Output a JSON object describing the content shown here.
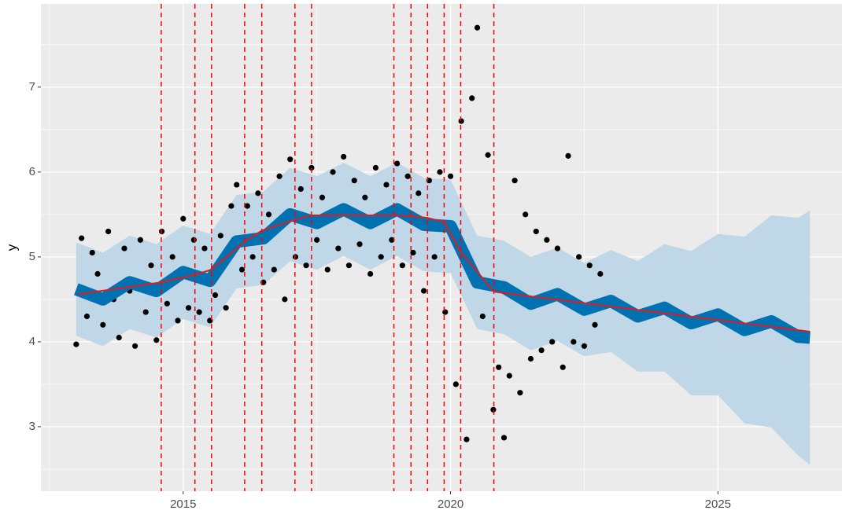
{
  "chart_data": {
    "type": "forecast",
    "ylabel": "y",
    "xlim": [
      2012.34,
      2027.32
    ],
    "ylim": [
      2.24,
      7.98
    ],
    "xticks": [
      2015,
      2020,
      2025
    ],
    "yticks": [
      3,
      4,
      5,
      6,
      7
    ],
    "minor_xticks": [
      2012.5,
      2017.5,
      2022.5
    ],
    "minor_yticks": [
      2.5,
      3.5,
      4.5,
      5.5,
      6.5,
      7.5
    ],
    "grid": true,
    "background": "#EBEBEB",
    "points": {
      "color": "#000000",
      "x": [
        2013.0,
        2013.1,
        2013.2,
        2013.3,
        2013.4,
        2013.5,
        2013.6,
        2013.7,
        2013.8,
        2013.9,
        2014.0,
        2014.1,
        2014.2,
        2014.3,
        2014.4,
        2014.5,
        2014.6,
        2014.7,
        2014.8,
        2014.9,
        2015.0,
        2015.1,
        2015.2,
        2015.3,
        2015.4,
        2015.5,
        2015.6,
        2015.7,
        2015.8,
        2015.9,
        2016.0,
        2016.1,
        2016.2,
        2016.3,
        2016.4,
        2016.5,
        2016.6,
        2016.7,
        2016.8,
        2016.9,
        2017.0,
        2017.1,
        2017.2,
        2017.3,
        2017.4,
        2017.5,
        2017.6,
        2017.7,
        2017.8,
        2017.9,
        2018.0,
        2018.1,
        2018.2,
        2018.3,
        2018.4,
        2018.5,
        2018.6,
        2018.7,
        2018.8,
        2018.9,
        2019.0,
        2019.1,
        2019.2,
        2019.3,
        2019.4,
        2019.5,
        2019.6,
        2019.7,
        2019.8,
        2019.9,
        2020.0,
        2020.1,
        2020.2,
        2020.3,
        2020.4,
        2020.5,
        2020.6,
        2020.7,
        2020.8,
        2020.9,
        2021.0,
        2021.1,
        2021.2,
        2021.3,
        2021.4,
        2021.5,
        2021.6,
        2021.7,
        2021.8,
        2021.9,
        2022.0,
        2022.1,
        2022.2,
        2022.3,
        2022.4,
        2022.5,
        2022.6,
        2022.7,
        2022.8
      ],
      "values": [
        3.97,
        5.22,
        4.3,
        5.05,
        4.8,
        4.2,
        5.3,
        4.5,
        4.05,
        5.1,
        4.6,
        3.95,
        5.2,
        4.35,
        4.9,
        4.02,
        5.3,
        4.45,
        5.0,
        4.25,
        5.45,
        4.4,
        5.2,
        4.35,
        5.1,
        4.25,
        4.55,
        5.25,
        4.4,
        5.6,
        5.85,
        4.85,
        5.6,
        5.0,
        5.75,
        4.7,
        5.5,
        4.85,
        5.95,
        4.5,
        6.15,
        5.0,
        5.8,
        4.9,
        6.05,
        5.2,
        5.7,
        4.85,
        6.0,
        5.1,
        6.18,
        4.9,
        5.9,
        5.15,
        5.7,
        4.8,
        6.05,
        5.0,
        5.85,
        5.2,
        6.1,
        4.9,
        5.95,
        5.05,
        5.75,
        4.6,
        5.9,
        5.0,
        6.0,
        4.35,
        5.95,
        3.5,
        6.6,
        2.85,
        6.87,
        7.7,
        4.3,
        6.2,
        3.2,
        3.7,
        2.87,
        3.6,
        5.9,
        3.4,
        5.5,
        3.8,
        5.3,
        3.9,
        5.2,
        4.0,
        5.1,
        3.7,
        6.19,
        4.0,
        5.0,
        3.95,
        4.9,
        4.2,
        4.8
      ]
    },
    "forecast": {
      "color": "#0072B2",
      "band_color": "#BFD7E6",
      "x": [
        2013.0,
        2013.5,
        2014.0,
        2014.5,
        2015.0,
        2015.5,
        2016.0,
        2016.5,
        2017.0,
        2017.5,
        2018.0,
        2018.5,
        2019.0,
        2019.5,
        2020.0,
        2020.5,
        2021.0,
        2021.5,
        2022.0,
        2022.5,
        2023.0,
        2023.5,
        2024.0,
        2024.5,
        2025.0,
        2025.5,
        2026.0,
        2026.5,
        2026.72
      ],
      "yhat": [
        4.62,
        4.5,
        4.7,
        4.6,
        4.82,
        4.72,
        5.18,
        5.22,
        5.5,
        5.4,
        5.56,
        5.4,
        5.56,
        5.38,
        5.36,
        4.7,
        4.64,
        4.45,
        4.56,
        4.38,
        4.48,
        4.3,
        4.4,
        4.22,
        4.32,
        4.14,
        4.24,
        4.06,
        4.05
      ],
      "yhat_upper": [
        5.17,
        5.05,
        5.25,
        5.15,
        5.37,
        5.27,
        5.73,
        5.77,
        6.05,
        5.95,
        6.11,
        5.95,
        6.11,
        5.93,
        5.91,
        5.25,
        5.19,
        5.0,
        5.11,
        4.93,
        5.08,
        4.95,
        5.15,
        5.07,
        5.27,
        5.24,
        5.49,
        5.46,
        5.55
      ],
      "yhat_lower": [
        4.07,
        3.95,
        4.15,
        4.05,
        4.27,
        4.17,
        4.63,
        4.67,
        4.95,
        4.85,
        5.01,
        4.85,
        5.01,
        4.83,
        4.81,
        4.15,
        4.09,
        3.9,
        4.01,
        3.83,
        3.88,
        3.65,
        3.65,
        3.37,
        3.37,
        3.04,
        2.99,
        2.66,
        2.55
      ]
    },
    "trend": {
      "color": "#E31A1C",
      "x": [
        2013.03,
        2014.59,
        2015.22,
        2015.53,
        2016.15,
        2016.47,
        2017.09,
        2017.4,
        2018.94,
        2019.26,
        2019.57,
        2019.88,
        2020.19,
        2020.81,
        2026.72
      ],
      "values": [
        4.56,
        4.7,
        4.79,
        4.85,
        5.18,
        5.31,
        5.44,
        5.49,
        5.49,
        5.48,
        5.46,
        5.41,
        5.06,
        4.59,
        4.12
      ]
    },
    "changepoints": {
      "color": "#FF0000",
      "x": [
        2014.59,
        2015.22,
        2015.53,
        2016.15,
        2016.47,
        2017.09,
        2017.4,
        2018.94,
        2019.26,
        2019.57,
        2019.88,
        2020.19,
        2020.81
      ]
    }
  }
}
